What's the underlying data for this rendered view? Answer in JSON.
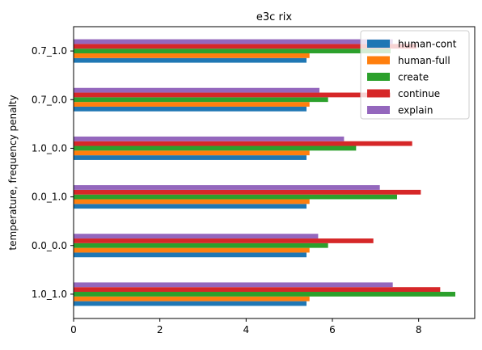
{
  "chart_data": {
    "type": "bar",
    "orientation": "horizontal",
    "title": "e3c rix",
    "xlabel": "",
    "ylabel": "temperature, frequency penalty",
    "xlim": [
      0,
      9.3
    ],
    "xticks": [
      0,
      2,
      4,
      6,
      8
    ],
    "categories": [
      "1.0_1.0",
      "0.0_0.0",
      "0.0_1.0",
      "1.0_0.0",
      "0.7_0.0",
      "0.7_1.0"
    ],
    "series": [
      {
        "name": "human-cont",
        "color": "#1f77b4",
        "values": [
          5.4,
          5.4,
          5.4,
          5.4,
          5.4,
          5.4
        ]
      },
      {
        "name": "human-full",
        "color": "#ff7f0e",
        "values": [
          5.47,
          5.47,
          5.47,
          5.47,
          5.47,
          5.47
        ]
      },
      {
        "name": "create",
        "color": "#2ca02c",
        "values": [
          8.85,
          5.9,
          7.5,
          6.55,
          5.9,
          7.35
        ]
      },
      {
        "name": "continue",
        "color": "#d62728",
        "values": [
          8.5,
          6.95,
          8.05,
          7.85,
          7.35,
          7.95
        ]
      },
      {
        "name": "explain",
        "color": "#9467bd",
        "values": [
          7.4,
          5.67,
          7.1,
          6.27,
          5.7,
          7.4
        ]
      }
    ],
    "legend_position": "top-right",
    "grid": false
  }
}
